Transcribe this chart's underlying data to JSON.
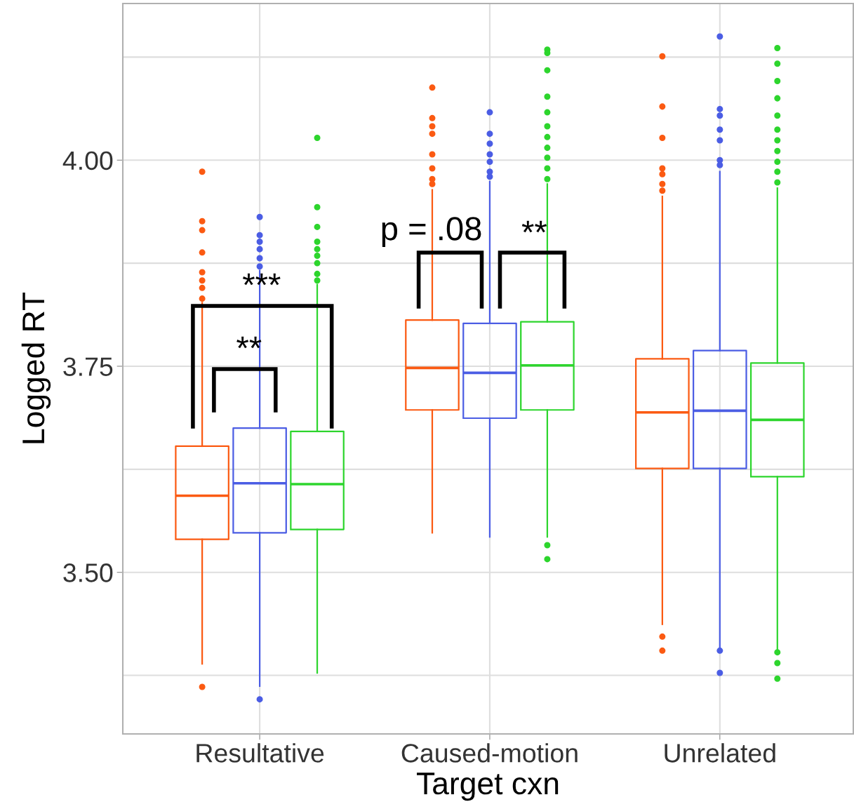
{
  "chart_data": {
    "type": "box",
    "xlabel": "Target cxn",
    "ylabel": "Logged RT",
    "categories": [
      "Resultative",
      "Caused-motion",
      "Unrelated"
    ],
    "ylim": [
      3.304,
      4.19
    ],
    "yticks": [
      {
        "value": 3.375,
        "label": null
      },
      {
        "value": 3.5,
        "label": "3.50"
      },
      {
        "value": 3.625,
        "label": null
      },
      {
        "value": 3.75,
        "label": "3.75"
      },
      {
        "value": 3.875,
        "label": null
      },
      {
        "value": 4.0,
        "label": "4.00"
      },
      {
        "value": 4.125,
        "label": null
      }
    ],
    "grid": true,
    "legend": false,
    "series": [
      {
        "color": "#fb5a12",
        "boxes": [
          {
            "low": 3.389,
            "q1": 3.54,
            "median": 3.593,
            "q3": 3.653,
            "high": 3.827,
            "outliers": [
              3.361,
              3.986,
              3.926,
              3.915,
              3.888,
              3.864,
              3.854,
              3.845,
              3.832
            ]
          },
          {
            "low": 3.548,
            "q1": 3.697,
            "median": 3.748,
            "q3": 3.806,
            "high": 3.964,
            "outliers": [
              4.088,
              4.051,
              4.041,
              4.032,
              4.007,
              3.99,
              3.977,
              3.971
            ]
          },
          {
            "low": 3.437,
            "q1": 3.626,
            "median": 3.694,
            "q3": 3.759,
            "high": 3.956,
            "outliers": [
              3.422,
              3.405,
              4.126,
              4.065,
              4.027,
              3.99,
              3.983,
              3.971,
              3.963
            ]
          }
        ]
      },
      {
        "color": "#4b5de4",
        "boxes": [
          {
            "low": 3.362,
            "q1": 3.548,
            "median": 3.608,
            "q3": 3.675,
            "high": 3.866,
            "outliers": [
              3.346,
              3.931,
              3.909,
              3.901,
              3.892,
              3.881,
              3.871
            ]
          },
          {
            "low": 3.543,
            "q1": 3.687,
            "median": 3.742,
            "q3": 3.802,
            "high": 3.974,
            "outliers": [
              4.058,
              4.032,
              4.02,
              4.007,
              3.998,
              3.986,
              3.98
            ]
          },
          {
            "low": 3.407,
            "q1": 3.626,
            "median": 3.696,
            "q3": 3.769,
            "high": 3.986,
            "outliers": [
              3.405,
              3.378,
              4.15,
              4.062,
              4.054,
              4.037,
              4.024,
              4.0,
              3.994
            ]
          }
        ]
      },
      {
        "color": "#2dd52d",
        "boxes": [
          {
            "low": 3.378,
            "q1": 3.552,
            "median": 3.607,
            "q3": 3.671,
            "high": 3.849,
            "outliers": [
              4.027,
              3.943,
              3.919,
              3.901,
              3.892,
              3.884,
              3.875,
              3.862,
              3.854
            ]
          },
          {
            "low": 3.543,
            "q1": 3.697,
            "median": 3.751,
            "q3": 3.804,
            "high": 3.971,
            "outliers": [
              3.533,
              3.516,
              4.134,
              4.13,
              4.109,
              4.077,
              4.058,
              4.041,
              4.028,
              4.015,
              4.003,
              3.99,
              3.977
            ]
          },
          {
            "low": 3.403,
            "q1": 3.616,
            "median": 3.685,
            "q3": 3.754,
            "high": 3.966,
            "outliers": [
              3.403,
              3.39,
              3.371,
              4.136,
              4.117,
              4.096,
              4.075,
              4.054,
              4.037,
              4.024,
              4.011,
              3.998,
              3.986,
              3.973
            ]
          }
        ]
      }
    ],
    "annotations": [
      "***",
      "**",
      "p = .08",
      "**"
    ]
  }
}
